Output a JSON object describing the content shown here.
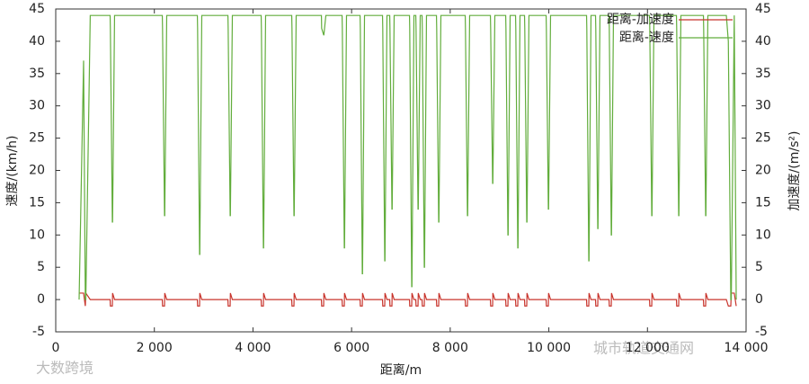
{
  "chart_data": {
    "type": "line",
    "x_label": "距离/m",
    "y_label": "速度/(km/h)",
    "y2_label": "加速度/(m/s²)",
    "xlim": [
      0,
      14000
    ],
    "xticks": [
      {
        "value": 0,
        "label": "0"
      },
      {
        "value": 2000,
        "label": "2 000"
      },
      {
        "value": 4000,
        "label": "4 000"
      },
      {
        "value": 6000,
        "label": "6 000"
      },
      {
        "value": 8000,
        "label": "8 000"
      },
      {
        "value": 10000,
        "label": "10 000"
      },
      {
        "value": 12000,
        "label": "12 000"
      },
      {
        "value": 14000,
        "label": "14 000"
      }
    ],
    "ylim": [
      -5,
      45
    ],
    "yticks": [
      -5,
      0,
      5,
      10,
      15,
      20,
      25,
      30,
      35,
      40,
      45
    ],
    "y2lim": [
      -5,
      45
    ],
    "y2ticks": [
      -5,
      0,
      5,
      10,
      15,
      20,
      25,
      30,
      35,
      40,
      45
    ],
    "legend": "top-right",
    "x": [
      474,
      565,
      600,
      610,
      700,
      1103,
      1108,
      1148,
      1153,
      1193,
      2161,
      2166,
      2206,
      2211,
      2251,
      2872,
      2877,
      2917,
      2922,
      2962,
      3492,
      3497,
      3537,
      3542,
      3582,
      4166,
      4171,
      4211,
      4216,
      4256,
      4786,
      4791,
      4831,
      4836,
      4876,
      5388,
      5393,
      5433,
      5438,
      5478,
      5807,
      5812,
      5852,
      5857,
      5897,
      6172,
      6177,
      6217,
      6222,
      6262,
      6627,
      6632,
      6672,
      6677,
      6717,
      6773,
      6778,
      6818,
      6823,
      6863,
      7174,
      7179,
      7219,
      7224,
      7264,
      7302,
      7307,
      7347,
      7352,
      7392,
      7429,
      7434,
      7474,
      7479,
      7519,
      7721,
      7726,
      7766,
      7771,
      7811,
      8304,
      8309,
      8349,
      8354,
      8394,
      8815,
      8820,
      8860,
      8865,
      8905,
      9125,
      9130,
      9170,
      9175,
      9215,
      9325,
      9330,
      9370,
      9375,
      9415,
      9507,
      9512,
      9552,
      9557,
      9597,
      9945,
      9950,
      9990,
      9995,
      10035,
      10765,
      10770,
      10810,
      10815,
      10855,
      10947,
      10952,
      10992,
      10997,
      11037,
      11221,
      11226,
      11266,
      11271,
      11311,
      12042,
      12047,
      12087,
      12092,
      12132,
      12588,
      12593,
      12633,
      12638,
      12678,
      13135,
      13140,
      13180,
      13185,
      13225,
      13600,
      13640,
      13690,
      13700,
      13760,
      13800
    ],
    "series": [
      {
        "name": "距离-加速度",
        "color": "#c8342c",
        "axis": "y2",
        "values": [
          1,
          1,
          -1,
          1,
          0,
          0,
          -1,
          -1,
          1,
          0,
          0,
          -1,
          -1,
          1,
          0,
          0,
          -1,
          -1,
          1,
          0,
          0,
          -1,
          -1,
          1,
          0,
          0,
          -1,
          -1,
          1,
          0,
          0,
          -1,
          -1,
          1,
          0,
          0,
          -1,
          -1,
          1,
          0,
          0,
          -1,
          -1,
          1,
          0,
          0,
          -1,
          -1,
          1,
          0,
          0,
          -1,
          -1,
          1,
          0,
          0,
          -1,
          -1,
          1,
          0,
          0,
          -1,
          -1,
          1,
          0,
          0,
          -1,
          -1,
          1,
          0,
          0,
          -1,
          -1,
          1,
          0,
          0,
          -1,
          -1,
          1,
          0,
          0,
          -1,
          -1,
          1,
          0,
          0,
          -1,
          -1,
          1,
          0,
          0,
          -1,
          -1,
          1,
          0,
          0,
          -1,
          -1,
          1,
          0,
          0,
          -1,
          -1,
          1,
          0,
          0,
          -1,
          -1,
          1,
          0,
          0,
          -1,
          -1,
          1,
          0,
          0,
          -1,
          -1,
          1,
          0,
          0,
          -1,
          -1,
          1,
          0,
          0,
          -1,
          -1,
          1,
          0,
          0,
          -1,
          -1,
          1,
          0,
          0,
          -1,
          -1,
          1,
          0,
          0,
          -1,
          -1,
          1,
          1,
          -1
        ]
      },
      {
        "name": "距离-速度",
        "color": "#62ad3c",
        "values": [
          0,
          37,
          0,
          0,
          44,
          44,
          42,
          12,
          12,
          44,
          44,
          42,
          13,
          13,
          44,
          44,
          42,
          7,
          7,
          44,
          44,
          42,
          13,
          13,
          44,
          44,
          42,
          8,
          8,
          44,
          44,
          42,
          13,
          13,
          44,
          44,
          42,
          41,
          41,
          44,
          44,
          42,
          8,
          8,
          44,
          44,
          42,
          4,
          4,
          44,
          44,
          42,
          6,
          6,
          44,
          44,
          42,
          14,
          14,
          44,
          44,
          42,
          2,
          2,
          44,
          44,
          42,
          14,
          14,
          44,
          44,
          42,
          5,
          5,
          44,
          44,
          42,
          12,
          12,
          44,
          44,
          42,
          13,
          13,
          44,
          44,
          42,
          18,
          18,
          44,
          44,
          42,
          10,
          10,
          44,
          44,
          42,
          8,
          8,
          44,
          44,
          42,
          12,
          12,
          44,
          44,
          42,
          14,
          14,
          44,
          44,
          42,
          6,
          6,
          44,
          44,
          42,
          11,
          11,
          44,
          44,
          42,
          10,
          10,
          44,
          44,
          42,
          13,
          13,
          44,
          44,
          42,
          13,
          13,
          44,
          44,
          42,
          13,
          13,
          44,
          44,
          40,
          0,
          0,
          44,
          0
        ]
      }
    ]
  },
  "watermarks": [
    "大数跨境",
    "城市轨道交通网"
  ]
}
